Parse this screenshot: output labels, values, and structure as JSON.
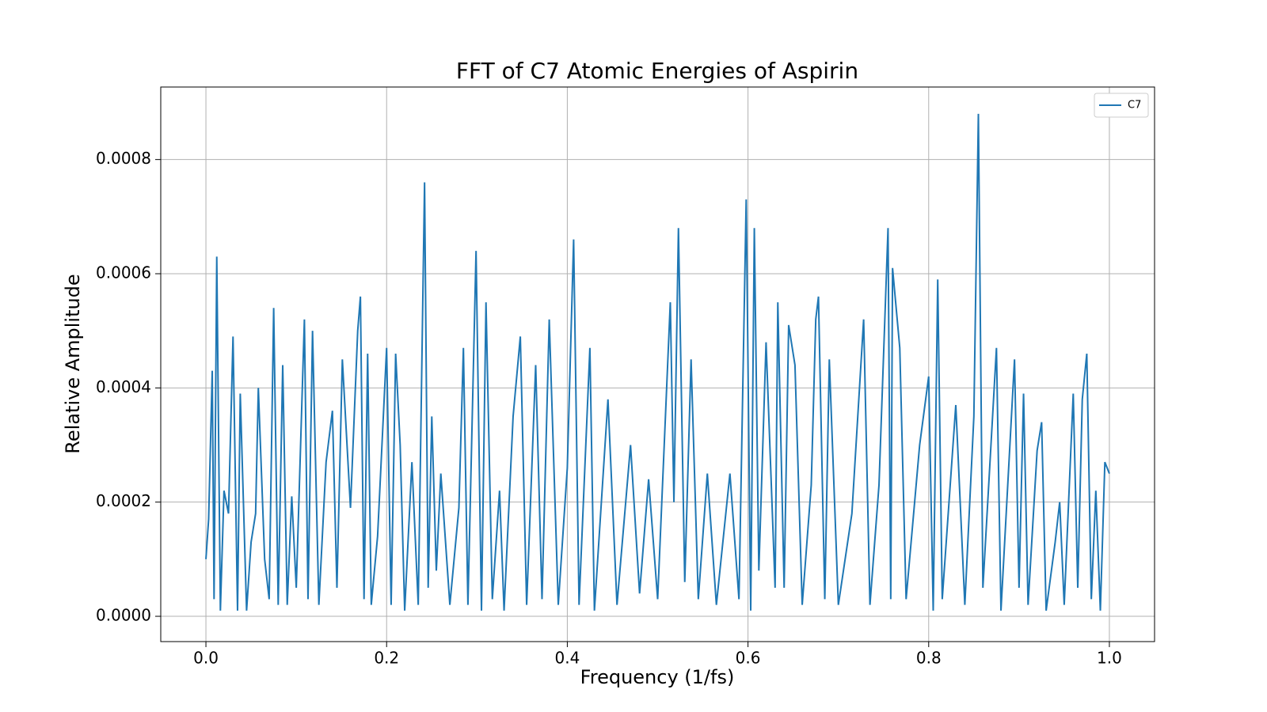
{
  "chart_data": {
    "type": "line",
    "title": "FFT of C7 Atomic Energies of Aspirin",
    "xlabel": "Frequency (1/fs)",
    "ylabel": "Relative Amplitude",
    "x": [
      0.0,
      0.003,
      0.007,
      0.009,
      0.012,
      0.016,
      0.02,
      0.025,
      0.03,
      0.035,
      0.038,
      0.045,
      0.05,
      0.055,
      0.058,
      0.065,
      0.07,
      0.075,
      0.08,
      0.085,
      0.09,
      0.095,
      0.1,
      0.109,
      0.113,
      0.118,
      0.125,
      0.133,
      0.14,
      0.145,
      0.151,
      0.16,
      0.168,
      0.171,
      0.175,
      0.179,
      0.183,
      0.19,
      0.2,
      0.205,
      0.21,
      0.215,
      0.22,
      0.228,
      0.235,
      0.242,
      0.246,
      0.25,
      0.255,
      0.26,
      0.27,
      0.28,
      0.285,
      0.29,
      0.299,
      0.305,
      0.31,
      0.317,
      0.325,
      0.33,
      0.34,
      0.348,
      0.355,
      0.365,
      0.372,
      0.38,
      0.39,
      0.4,
      0.407,
      0.413,
      0.425,
      0.43,
      0.445,
      0.455,
      0.47,
      0.48,
      0.49,
      0.5,
      0.514,
      0.518,
      0.523,
      0.53,
      0.537,
      0.545,
      0.555,
      0.565,
      0.58,
      0.59,
      0.598,
      0.603,
      0.607,
      0.612,
      0.62,
      0.63,
      0.633,
      0.64,
      0.645,
      0.652,
      0.66,
      0.67,
      0.675,
      0.678,
      0.685,
      0.69,
      0.7,
      0.715,
      0.728,
      0.735,
      0.745,
      0.755,
      0.758,
      0.76,
      0.768,
      0.775,
      0.79,
      0.8,
      0.805,
      0.81,
      0.815,
      0.83,
      0.84,
      0.85,
      0.855,
      0.86,
      0.875,
      0.88,
      0.895,
      0.9,
      0.905,
      0.91,
      0.92,
      0.925,
      0.93,
      0.94,
      0.945,
      0.95,
      0.96,
      0.965,
      0.97,
      0.975,
      0.98,
      0.985,
      0.99,
      0.995,
      1.0
    ],
    "series": [
      {
        "name": "C7",
        "color": "#1f77b4",
        "values": [
          0.0001,
          0.00017,
          0.00043,
          3e-05,
          0.00063,
          1e-05,
          0.00022,
          0.00018,
          0.00049,
          1e-05,
          0.00039,
          1e-05,
          0.00013,
          0.00018,
          0.0004,
          0.0001,
          3e-05,
          0.00054,
          2e-05,
          0.00044,
          2e-05,
          0.00021,
          5e-05,
          0.00052,
          3e-05,
          0.0005,
          2e-05,
          0.00027,
          0.00036,
          5e-05,
          0.00045,
          0.00019,
          0.0005,
          0.00056,
          3e-05,
          0.00046,
          2e-05,
          0.00014,
          0.00047,
          2e-05,
          0.00046,
          0.0003,
          1e-05,
          0.00027,
          2e-05,
          0.00076,
          5e-05,
          0.00035,
          8e-05,
          0.00025,
          2e-05,
          0.00019,
          0.00047,
          2e-05,
          0.00064,
          1e-05,
          0.00055,
          3e-05,
          0.00022,
          1e-05,
          0.00035,
          0.00049,
          2e-05,
          0.00044,
          3e-05,
          0.00052,
          2e-05,
          0.00026,
          0.00066,
          2e-05,
          0.00047,
          1e-05,
          0.00038,
          2e-05,
          0.0003,
          4e-05,
          0.00024,
          3e-05,
          0.00055,
          0.0002,
          0.00068,
          6e-05,
          0.00045,
          3e-05,
          0.00025,
          2e-05,
          0.00025,
          3e-05,
          0.00073,
          1e-05,
          0.00068,
          8e-05,
          0.00048,
          5e-05,
          0.00055,
          5e-05,
          0.00051,
          0.00044,
          2e-05,
          0.00023,
          0.00052,
          0.00056,
          3e-05,
          0.00045,
          2e-05,
          0.00018,
          0.00052,
          2e-05,
          0.00023,
          0.00068,
          3e-05,
          0.00061,
          0.00047,
          3e-05,
          0.0003,
          0.00042,
          1e-05,
          0.00059,
          3e-05,
          0.00037,
          2e-05,
          0.00035,
          0.00088,
          5e-05,
          0.00047,
          1e-05,
          0.00045,
          5e-05,
          0.00039,
          2e-05,
          0.00029,
          0.00034,
          1e-05,
          0.00013,
          0.0002,
          2e-05,
          0.00039,
          5e-05,
          0.00038,
          0.00046,
          3e-05,
          0.00022,
          1e-05,
          0.00027,
          0.00025
        ]
      }
    ],
    "xlim": [
      -0.05,
      1.05
    ],
    "ylim": [
      -4.43e-05,
      0.000927
    ],
    "xticks": [
      {
        "value": 0,
        "label": "0.0"
      },
      0.2,
      0.4,
      0.6,
      0.8,
      {
        "value": 1,
        "label": "1.0"
      }
    ],
    "yticks": [
      {
        "value": 0,
        "label": "0.0000"
      },
      {
        "value": 0.0002,
        "label": "0.0002"
      },
      {
        "value": 0.0004,
        "label": "0.0004"
      },
      {
        "value": 0.0006,
        "label": "0.0006"
      },
      {
        "value": 0.0008,
        "label": "0.0008"
      }
    ],
    "grid": true,
    "legend": "upper right"
  }
}
